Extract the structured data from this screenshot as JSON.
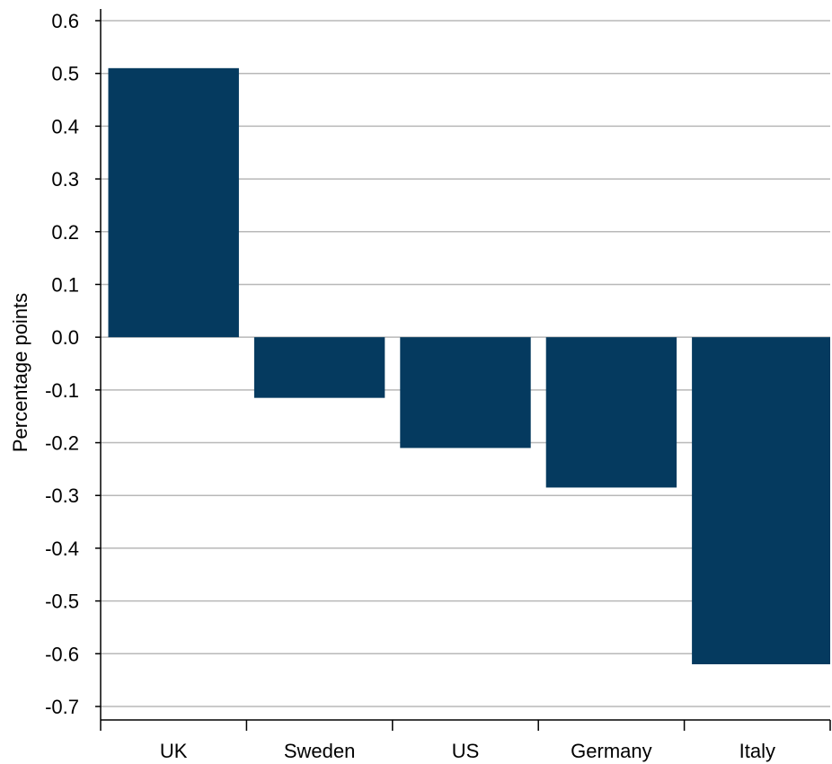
{
  "chart_data": {
    "type": "bar",
    "title": "",
    "xlabel": "",
    "ylabel": "Percentage points",
    "categories": [
      "UK",
      "Sweden",
      "US",
      "Germany",
      "Italy"
    ],
    "values": [
      0.51,
      -0.115,
      -0.21,
      -0.285,
      -0.62
    ],
    "ylim": [
      -0.7,
      0.6
    ],
    "yticks": [
      0.6,
      0.5,
      0.4,
      0.3,
      0.2,
      0.1,
      0.0,
      -0.1,
      -0.2,
      -0.3,
      -0.4,
      -0.5,
      -0.6,
      -0.7
    ],
    "ytick_labels": [
      "0.6",
      "0.5",
      "0.4",
      "0.3",
      "0.2",
      "0.1",
      "0.0",
      "-0.1",
      "-0.2",
      "-0.3",
      "-0.4",
      "-0.5",
      "-0.6",
      "-0.7"
    ],
    "grid": true,
    "legend": "none",
    "bar_color": "#053a5f"
  }
}
